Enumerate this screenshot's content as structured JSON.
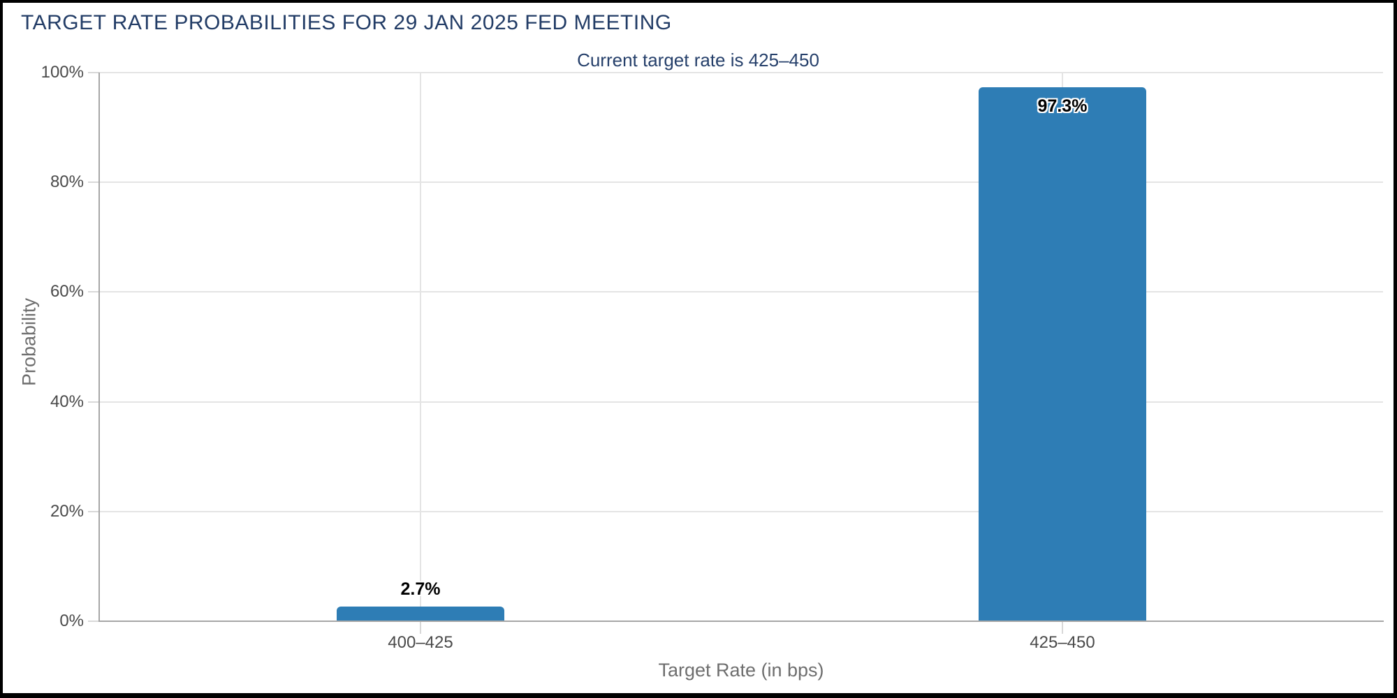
{
  "chart_data": {
    "type": "bar",
    "title": "TARGET RATE PROBABILITIES FOR 29 JAN 2025 FED MEETING",
    "subtitle": "Current target rate is 425–450",
    "xlabel": "Target Rate (in bps)",
    "ylabel": "Probability",
    "categories": [
      "400–425",
      "425–450"
    ],
    "values": [
      2.7,
      97.3
    ],
    "value_labels": [
      "2.7%",
      "97.3%"
    ],
    "yticks": [
      0,
      20,
      40,
      60,
      80,
      100
    ],
    "ytick_labels": [
      "0%",
      "20%",
      "40%",
      "60%",
      "80%",
      "100%"
    ],
    "ylim": [
      0,
      100
    ],
    "grid": true,
    "legend": false,
    "colors": {
      "bar": "#2e7db5",
      "title_text": "#223c66",
      "subtitle_text": "#26406b",
      "tick_label_text": "#4a4a4a",
      "axis_title_text": "#6e6e6e",
      "gridline": "#e4e4e4",
      "axis_line": "#a6a6a6",
      "tick_mark": "#d8d8d8",
      "data_label_text": "#000000",
      "frame_border": "#000000",
      "background": "#ffffff"
    }
  }
}
